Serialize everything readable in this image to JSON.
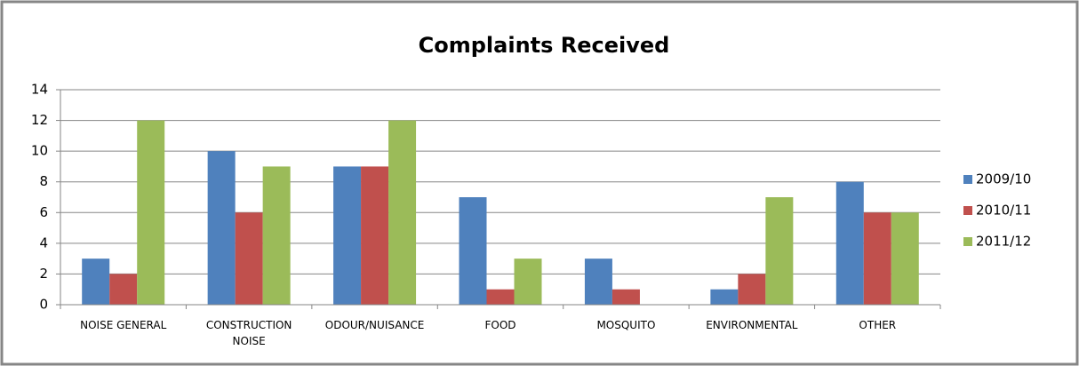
{
  "chart_data": {
    "type": "bar",
    "title": "Complaints Received",
    "categories": [
      "NOISE GENERAL",
      "CONSTRUCTION NOISE",
      "ODOUR/NUISANCE",
      "FOOD",
      "MOSQUITO",
      "ENVIRONMENTAL",
      "OTHER"
    ],
    "series": [
      {
        "name": "2009/10",
        "color": "#4f81bd",
        "values": [
          3,
          10,
          9,
          7,
          3,
          1,
          8
        ]
      },
      {
        "name": "2010/11",
        "color": "#c0504d",
        "values": [
          2,
          6,
          9,
          1,
          1,
          2,
          6
        ]
      },
      {
        "name": "2011/12",
        "color": "#9bbb59",
        "values": [
          12,
          9,
          12,
          3,
          0,
          7,
          6
        ]
      }
    ],
    "ylim": [
      0,
      14
    ],
    "yticks": [
      0,
      2,
      4,
      6,
      8,
      10,
      12,
      14
    ],
    "grid": true,
    "legend": "right"
  }
}
